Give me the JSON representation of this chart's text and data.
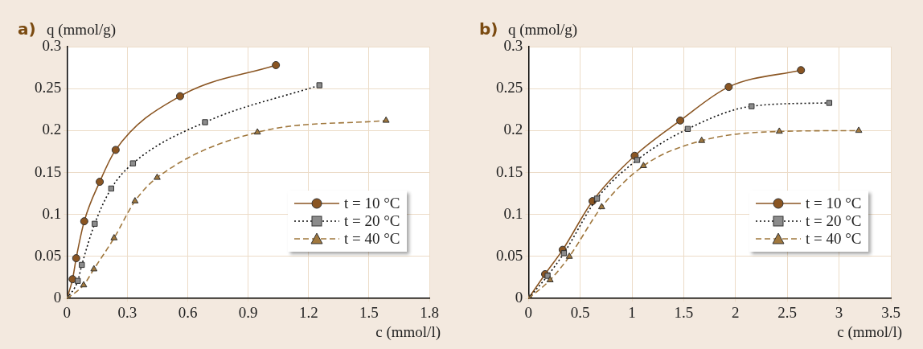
{
  "chart_data": [
    {
      "type": "line",
      "title": "a)",
      "ylabel": "q (mmol/g)",
      "xlabel": "c (mmol/l)",
      "xlim": [
        0,
        1.8
      ],
      "xticks": [
        0,
        0.3,
        0.6,
        0.9,
        1.2,
        1.5,
        1.8
      ],
      "ylim": [
        0,
        0.3
      ],
      "yticks": [
        0,
        0.05,
        0.1,
        0.15,
        0.2,
        0.25,
        0.3
      ],
      "grid": true,
      "legend": "right",
      "series": [
        {
          "name": "t = 10 °C",
          "color": "#8a5522",
          "marker": "circle",
          "line_style": "solid",
          "x": [
            0,
            0.028,
            0.046,
            0.086,
            0.163,
            0.242,
            0.562,
            1.038
          ],
          "values": [
            0,
            0.023,
            0.048,
            0.092,
            0.139,
            0.177,
            0.241,
            0.278
          ]
        },
        {
          "name": "t = 20 °C",
          "color": "#8c8c8c",
          "marker": "square",
          "line_style": "dotted",
          "x": [
            0,
            0.054,
            0.074,
            0.138,
            0.22,
            0.328,
            0.686,
            1.254
          ],
          "values": [
            0,
            0.021,
            0.04,
            0.089,
            0.131,
            0.161,
            0.21,
            0.254
          ]
        },
        {
          "name": "t = 40 °C",
          "color": "#a0783e",
          "marker": "triangle",
          "line_style": "dashed",
          "x": [
            0,
            0.083,
            0.134,
            0.234,
            0.338,
            0.448,
            0.946,
            1.585
          ],
          "values": [
            0,
            0.016,
            0.035,
            0.072,
            0.116,
            0.144,
            0.198,
            0.212
          ]
        }
      ]
    },
    {
      "type": "line",
      "title": "b)",
      "ylabel": "q (mmol/g)",
      "xlabel": "c (mmol/l)",
      "xlim": [
        0,
        3.5
      ],
      "xticks": [
        0,
        0.5,
        1,
        1.5,
        2,
        2.5,
        3,
        3.5
      ],
      "ylim": [
        0,
        0.3
      ],
      "yticks": [
        0,
        0.05,
        0.1,
        0.15,
        0.2,
        0.25,
        0.3
      ],
      "grid": true,
      "legend": "right",
      "series": [
        {
          "name": "t = 10 °C",
          "color": "#8a5522",
          "marker": "circle",
          "line_style": "solid",
          "x": [
            0,
            0.161,
            0.331,
            0.619,
            1.026,
            1.466,
            1.934,
            2.632
          ],
          "values": [
            0,
            0.029,
            0.058,
            0.116,
            0.17,
            0.212,
            0.252,
            0.272
          ]
        },
        {
          "name": "t = 20 °C",
          "color": "#8c8c8c",
          "marker": "square",
          "line_style": "dotted",
          "x": [
            0,
            0.185,
            0.343,
            0.662,
            1.05,
            1.539,
            2.155,
            2.905
          ],
          "values": [
            0,
            0.027,
            0.054,
            0.119,
            0.165,
            0.202,
            0.229,
            0.233
          ]
        },
        {
          "name": "t = 40 °C",
          "color": "#a0783e",
          "marker": "triangle",
          "line_style": "dashed",
          "x": [
            0,
            0.209,
            0.395,
            0.707,
            1.111,
            1.673,
            2.423,
            3.19
          ],
          "values": [
            0,
            0.022,
            0.05,
            0.109,
            0.158,
            0.188,
            0.199,
            0.2
          ]
        }
      ]
    }
  ]
}
